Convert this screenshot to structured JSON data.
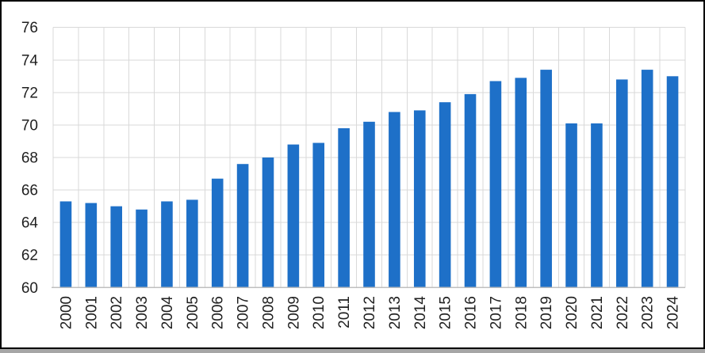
{
  "frame": {
    "background": "#FFFFFF",
    "border_color": "#000000",
    "bottom_strip_color": "#A6A6A6"
  },
  "chart_data": {
    "type": "bar",
    "title": "",
    "xlabel": "",
    "ylabel": "",
    "categories": [
      "2000",
      "2001",
      "2002",
      "2003",
      "2004",
      "2005",
      "2006",
      "2007",
      "2008",
      "2009",
      "2010",
      "2011",
      "2012",
      "2013",
      "2014",
      "2015",
      "2016",
      "2017",
      "2018",
      "2019",
      "2020",
      "2021",
      "2022",
      "2023",
      "2024"
    ],
    "values": [
      65.3,
      65.2,
      65.0,
      64.8,
      65.3,
      65.4,
      66.7,
      67.6,
      68.0,
      68.8,
      68.9,
      69.8,
      70.2,
      70.8,
      70.9,
      71.4,
      71.9,
      72.7,
      72.9,
      73.4,
      70.1,
      70.1,
      72.8,
      73.4,
      73.0
    ],
    "ylim": [
      60,
      76
    ],
    "yticks": [
      60,
      62,
      64,
      66,
      68,
      70,
      72,
      74,
      76
    ],
    "grid": "horizontal-and-vertical",
    "legend": "none",
    "bar_color": "#1E70C8",
    "gridline_color": "#D9D9D9",
    "axis_line_color": "#BFBFBF",
    "tick_label_color": "#1F1F1F"
  }
}
